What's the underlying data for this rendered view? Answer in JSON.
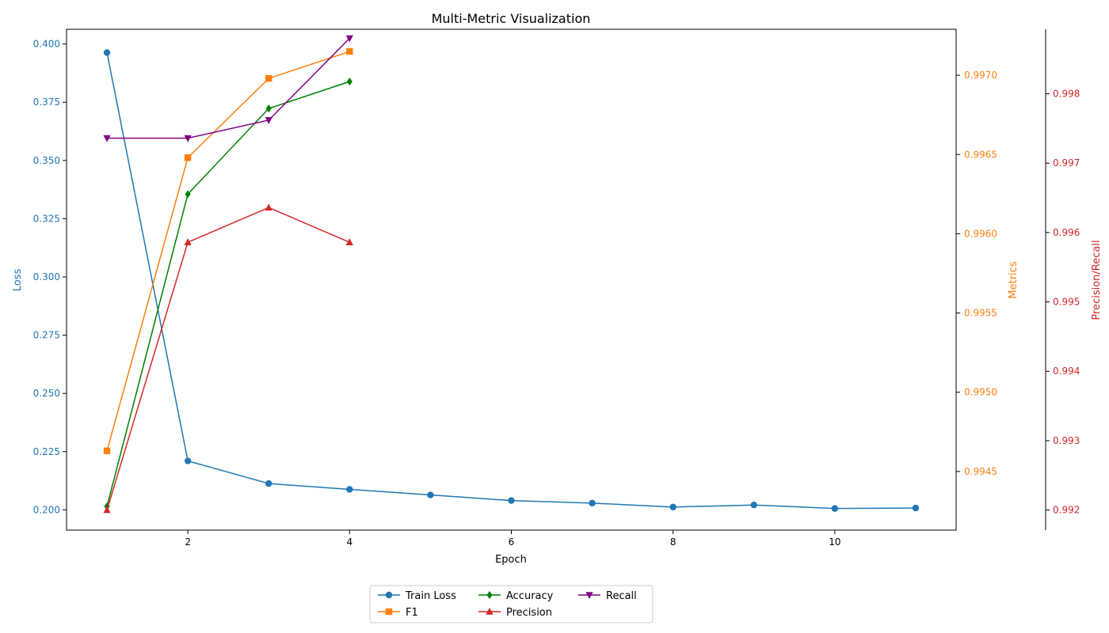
{
  "chart_data": {
    "type": "line",
    "title": "Multi-Metric Visualization",
    "xlabel": "Epoch",
    "xlim": [
      0.5,
      11.5
    ],
    "xticks": [
      2,
      4,
      6,
      8,
      10
    ],
    "axes": {
      "left": {
        "label": "Loss",
        "color": "#1f77b4",
        "ylim": [
          0.1913,
          0.4063
        ],
        "ticks": [
          "0.200",
          "0.225",
          "0.250",
          "0.275",
          "0.300",
          "0.325",
          "0.350",
          "0.375",
          "0.400"
        ]
      },
      "right1": {
        "label": "Metrics",
        "color": "#ff7f0e",
        "ylim": [
          0.99413,
          0.99729
        ],
        "ticks": [
          "0.9945",
          "0.9950",
          "0.9955",
          "0.9960",
          "0.9965",
          "0.9970"
        ]
      },
      "right2": {
        "label": "Precision/Recall",
        "color": "#d62728",
        "ylim": [
          0.99171,
          0.99893
        ],
        "ticks": [
          "0.992",
          "0.993",
          "0.994",
          "0.995",
          "0.996",
          "0.997",
          "0.998"
        ]
      }
    },
    "series": [
      {
        "name": "Train Loss",
        "axis": "left",
        "color": "#1f77b4",
        "marker": "circle",
        "x": [
          1,
          2,
          3,
          4,
          5,
          6,
          7,
          8,
          9,
          10,
          11
        ],
        "values": [
          0.3963,
          0.221,
          0.2113,
          0.2088,
          0.2064,
          0.204,
          0.2029,
          0.2012,
          0.2021,
          0.2006,
          0.2008
        ]
      },
      {
        "name": "F1",
        "axis": "right1",
        "color": "#ff7f0e",
        "marker": "square",
        "x": [
          1,
          2,
          3,
          4
        ],
        "values": [
          0.99463,
          0.99648,
          0.99698,
          0.99715
        ]
      },
      {
        "name": "Accuracy",
        "axis": "right1",
        "color": "#008000",
        "marker": "diamond",
        "x": [
          1,
          2,
          3,
          4
        ],
        "values": [
          0.99428,
          0.99625,
          0.99679,
          0.99696
        ]
      },
      {
        "name": "Precision",
        "axis": "right2",
        "color": "#d62728",
        "marker": "triangle-up",
        "x": [
          1,
          2,
          3,
          4
        ],
        "values": [
          0.992,
          0.99586,
          0.99636,
          0.99586
        ]
      },
      {
        "name": "Recall",
        "axis": "right2",
        "color": "#800080",
        "marker": "triangle-down",
        "x": [
          1,
          2,
          3,
          4
        ],
        "values": [
          0.99736,
          0.99736,
          0.99762,
          0.9988
        ]
      }
    ],
    "legend": {
      "placement": "bottom-center",
      "columns": 3
    }
  }
}
